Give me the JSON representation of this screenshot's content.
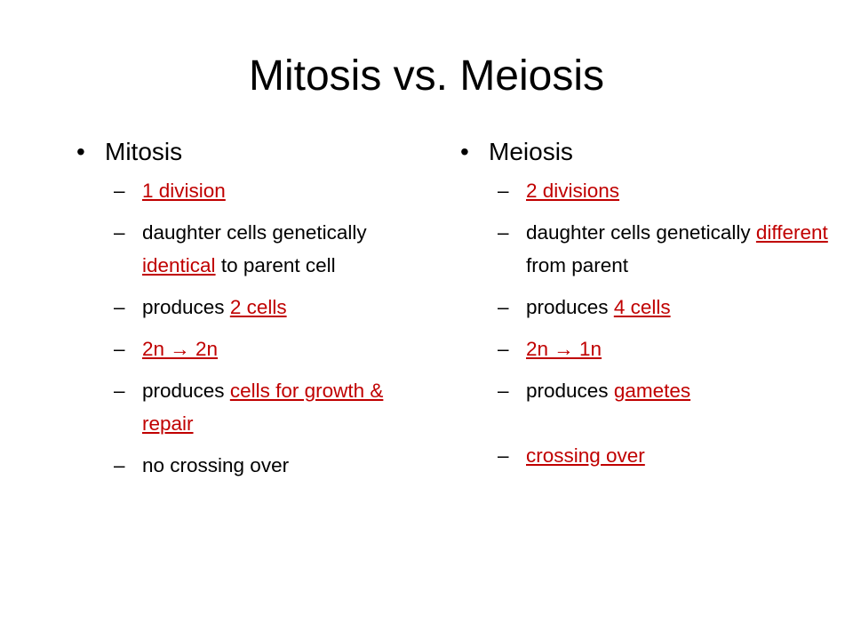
{
  "title": "Mitosis vs. Meiosis",
  "columns": [
    {
      "heading": "Mitosis",
      "items": [
        {
          "answer": "1 division"
        },
        {
          "text": "daughter cells genetically ",
          "answer": "identical",
          "after": " to parent cell"
        },
        {
          "text": "produces ",
          "answer": "2 cells"
        },
        {
          "answer": "2n → 2n"
        },
        {
          "text": "produces ",
          "answer": "cells for growth & repair"
        },
        {
          "text": "no crossing over"
        }
      ]
    },
    {
      "heading": "Meiosis",
      "items": [
        {
          "answer": "2 divisions"
        },
        {
          "text": "daughter cells genetically ",
          "answer": "different",
          "after": " from parent"
        },
        {
          "text": "produces ",
          "answer": "4 cells"
        },
        {
          "answer": "2n → 1n"
        },
        {
          "text": "produces ",
          "answer": "gametes"
        },
        {
          "answer": "crossing over"
        }
      ]
    }
  ]
}
